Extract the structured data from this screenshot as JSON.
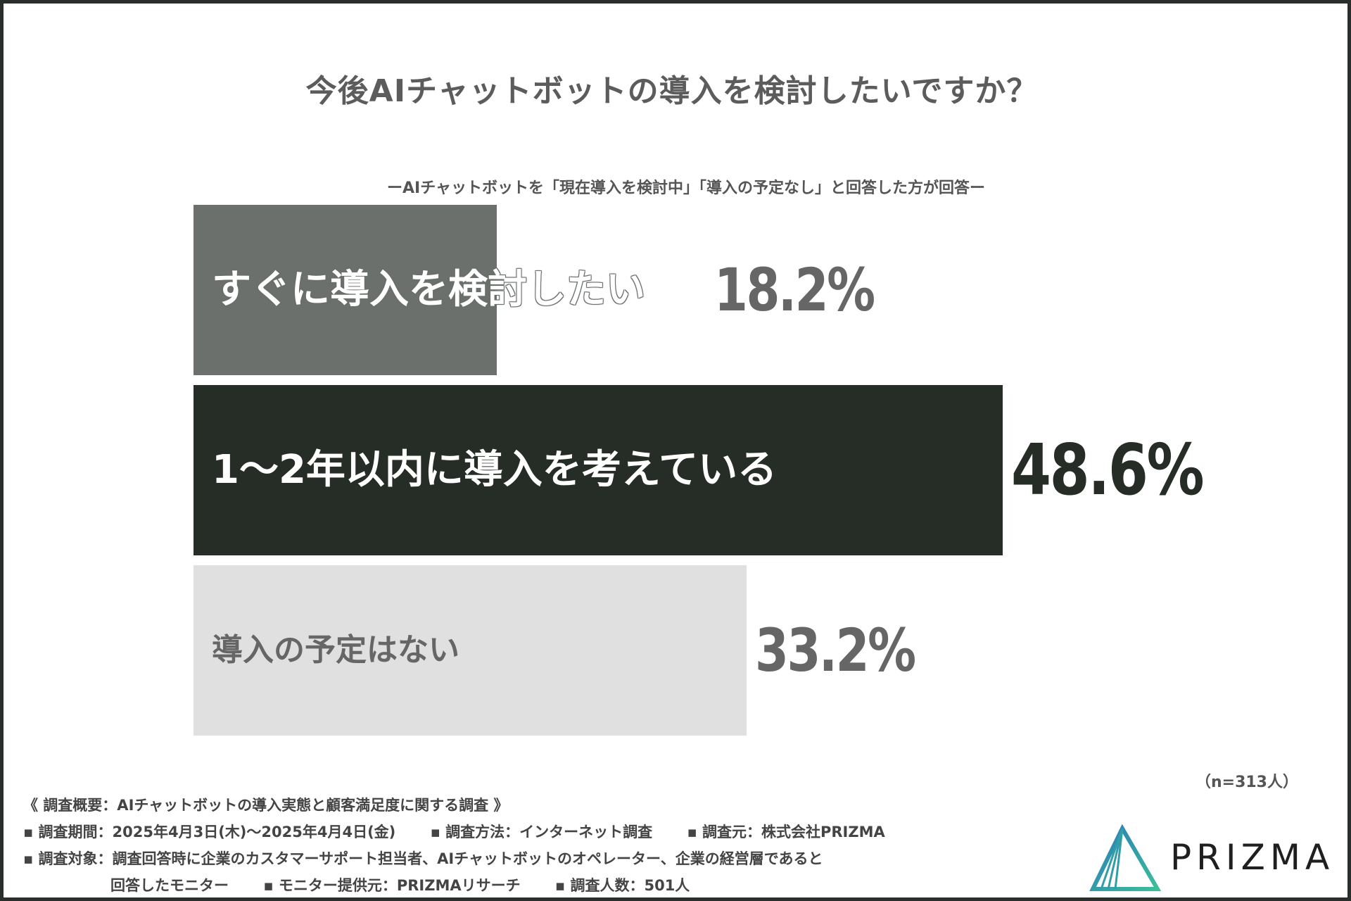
{
  "colors": {
    "bar_top": "#6b706c",
    "bar_mid": "#262c26",
    "bar_bottom": "#e0e0e0",
    "value_gray": "#666666",
    "value_dark": "#262c26"
  },
  "chart_data": {
    "type": "bar",
    "orientation": "horizontal",
    "title": "今後AIチャットボットの導入を検討したいですか？",
    "subtitle": "ーAIチャットボットを「現在導入を検討中」「導入の予定なし」と回答した方が回答ー",
    "categories": [
      "すぐに導入を検討したい",
      "1〜2年以内に導入を考えている",
      "導入の予定はない"
    ],
    "values": [
      18.2,
      48.6,
      33.2
    ],
    "value_labels": [
      "18.2%",
      "48.6%",
      "33.2%"
    ],
    "unit": "%",
    "xlim": [
      0,
      48.6
    ],
    "legend": "none",
    "grid": false,
    "n_note": "（n=313人）"
  },
  "footer": {
    "overview": "《 調査概要：AIチャットボットの導入実態と顧客満足度に関する調査 》",
    "period": "▪ 調査期間：2025年4月3日(木)〜2025年4月4日(金)",
    "method": "▪ 調査方法：インターネット調査",
    "source": "▪ 調査元：株式会社PRIZMA",
    "target": "▪ 調査対象：調査回答時に企業のカスタマーサポート担当者、AIチャットボットのオペレーター、企業の経営層であると",
    "target_cont": "回答したモニター",
    "provider": "▪ モニター提供元：PRIZMAリサーチ",
    "count": "▪ 調査人数：501人"
  },
  "logo": {
    "text": "PRIZMA",
    "icon": "prism-triangle-icon"
  }
}
